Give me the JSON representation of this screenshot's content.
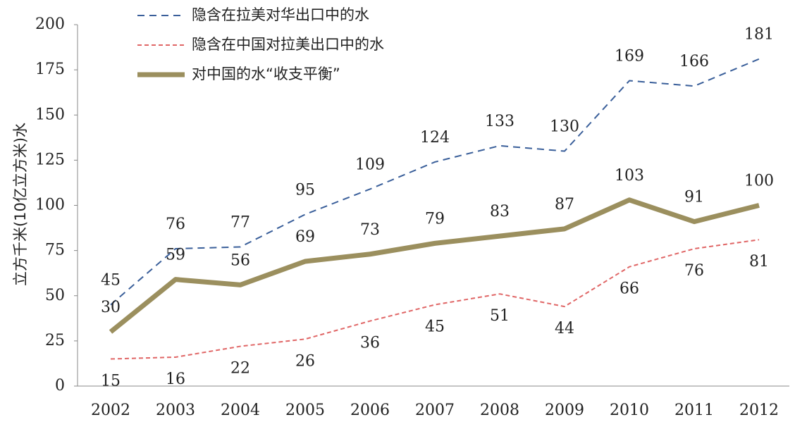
{
  "chart_data": {
    "type": "line",
    "ylabel": "立方千米(10亿立方米)水",
    "categories": [
      "2002",
      "2003",
      "2004",
      "2005",
      "2006",
      "2007",
      "2008",
      "2009",
      "2010",
      "2011",
      "2012"
    ],
    "series": [
      {
        "name": "隐含在拉美对华出口中的水",
        "color": "#3a5f9a",
        "line_style": "dashed",
        "values": [
          45,
          76,
          77,
          95,
          109,
          124,
          133,
          130,
          169,
          166,
          181
        ]
      },
      {
        "name": "隐含在中国对拉美出口中的水",
        "color": "#e06666",
        "line_style": "dashed",
        "values": [
          15,
          16,
          22,
          26,
          36,
          45,
          51,
          44,
          66,
          76,
          81
        ]
      },
      {
        "name": "对中国的水“收支平衡”",
        "color": "#9b8f5e",
        "line_style": "solid",
        "values": [
          30,
          59,
          56,
          69,
          73,
          79,
          83,
          87,
          103,
          91,
          100
        ]
      }
    ],
    "ylim": [
      0,
      200
    ],
    "yticks": [
      0,
      25,
      50,
      75,
      100,
      125,
      150,
      175,
      200
    ]
  }
}
